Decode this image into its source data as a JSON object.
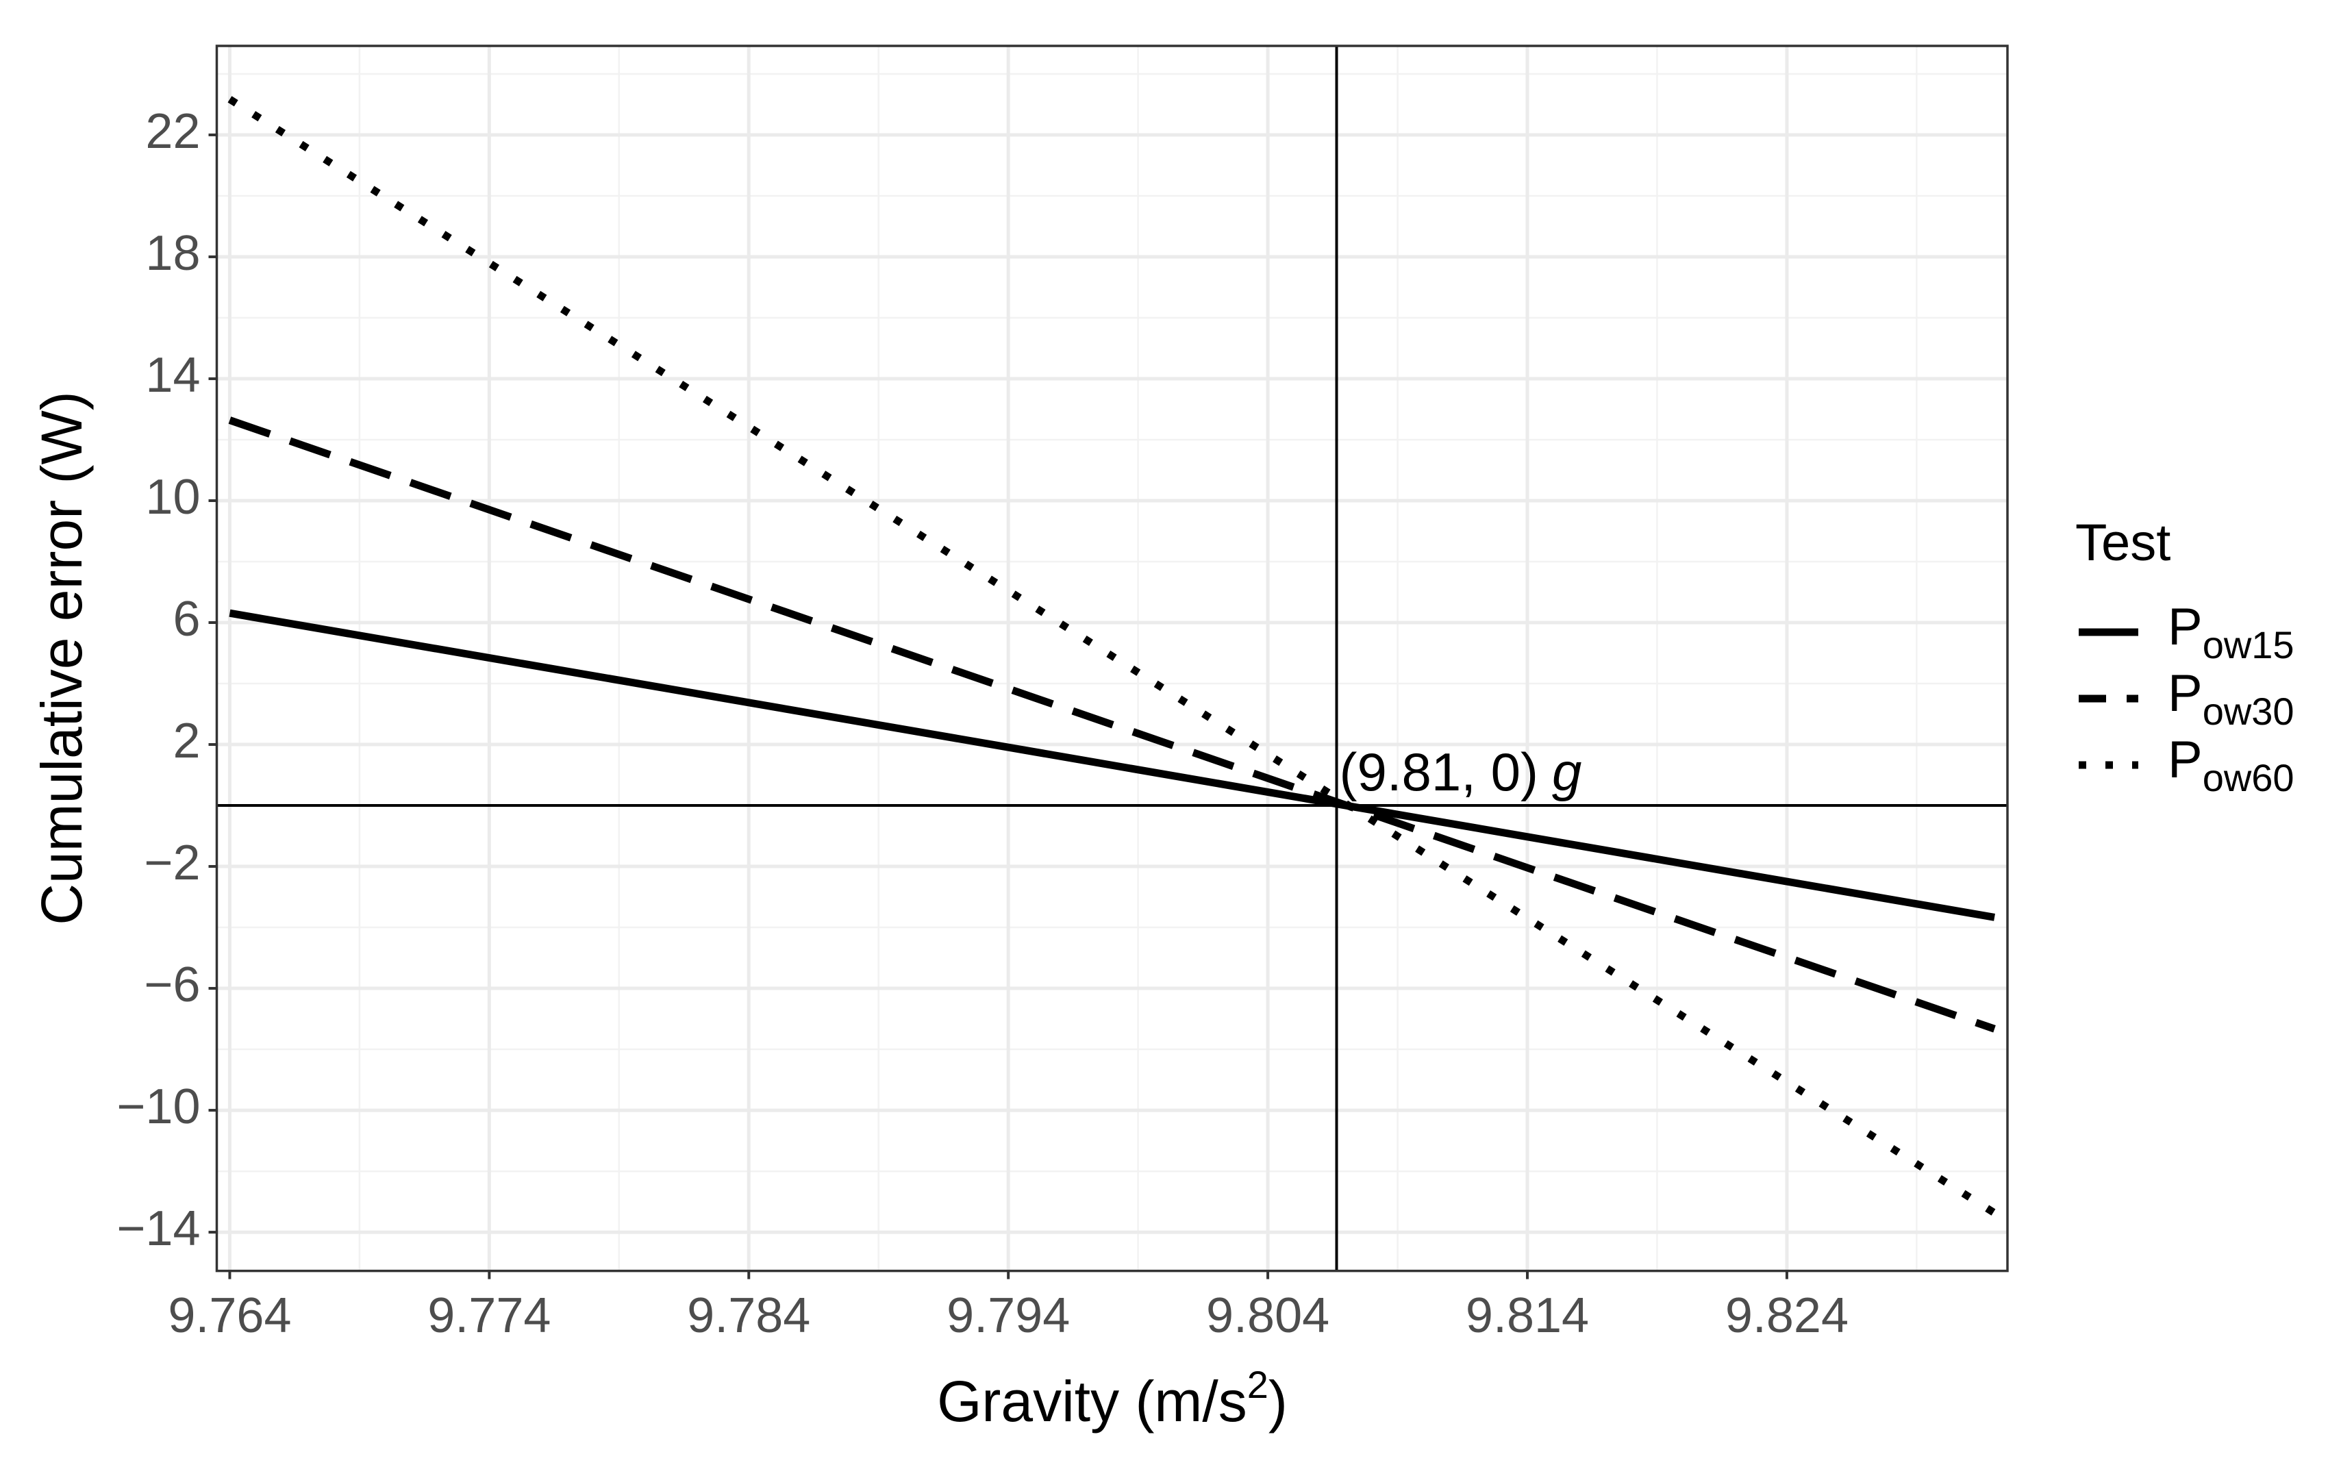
{
  "chart_data": {
    "type": "line",
    "xlabel": {
      "text": "Gravity (m/s",
      "superscript": "2",
      "suffix": ")"
    },
    "ylabel": "Cumulative error (W)",
    "x": [
      9.764,
      9.832
    ],
    "series": [
      {
        "name": "P",
        "name_subscript": "ow15",
        "color": "#000000",
        "linestyle": "solid",
        "values": [
          6.31,
          -3.67
        ]
      },
      {
        "name": "P",
        "name_subscript": "ow30",
        "color": "#000000",
        "linestyle": "dashed",
        "values": [
          12.64,
          -7.33
        ]
      },
      {
        "name": "P",
        "name_subscript": "ow60",
        "color": "#000000",
        "linestyle": "dotted",
        "values": [
          23.17,
          -13.37
        ]
      }
    ],
    "legend_title": "Test",
    "legend_position": "right",
    "xlim": [
      9.7635,
      9.8325
    ],
    "ylim": [
      -15.27,
      24.92
    ],
    "xticks": [
      9.764,
      9.774,
      9.784,
      9.794,
      9.804,
      9.814,
      9.824
    ],
    "yticks": [
      22,
      18,
      14,
      10,
      6,
      2,
      {
        "value": -2,
        "label": "−2"
      },
      {
        "value": -6,
        "label": "−6"
      },
      {
        "value": -10,
        "label": "−10"
      },
      {
        "value": -14,
        "label": "−14"
      }
    ],
    "minor_xticks": [
      9.769,
      9.779,
      9.789,
      9.799,
      9.809,
      9.819,
      9.829
    ],
    "minor_yticks": [
      24,
      20,
      16,
      12,
      8,
      4,
      0,
      -4,
      -8,
      -12
    ],
    "grid": true,
    "reference_lines": {
      "vline": 9.80665,
      "hline": 0
    },
    "annotation": {
      "text": "(9.81, 0)",
      "symbol": "g",
      "x": 9.80665,
      "y": 0
    }
  }
}
